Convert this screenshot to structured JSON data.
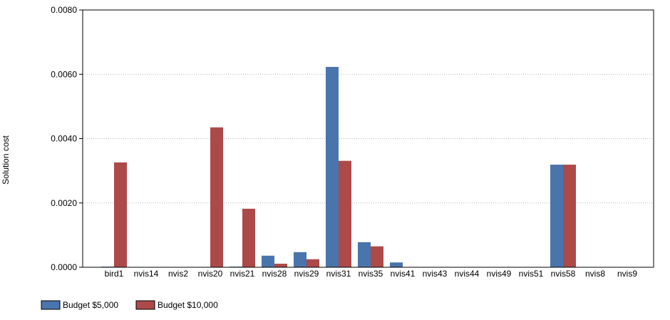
{
  "chart_data": {
    "type": "bar",
    "title": "",
    "xlabel": "",
    "ylabel": "Solution cost",
    "ylim": [
      0,
      0.008
    ],
    "yticks": [
      "0.0000",
      "0.0020",
      "0.0040",
      "0.0060",
      "0.0080"
    ],
    "ytick_values": [
      0,
      0.002,
      0.004,
      0.006,
      0.008
    ],
    "grid": "horizontal dotted",
    "legend_position": "bottom-left",
    "categories": [
      "bird1",
      "nvis14",
      "nvis2",
      "nvis20",
      "nvis21",
      "nvis28",
      "nvis29",
      "nvis31",
      "nvis35",
      "nvis41",
      "nvis43",
      "nvis44",
      "nvis49",
      "nvis51",
      "nvis58",
      "nvis8",
      "nvis9"
    ],
    "series": [
      {
        "name": "Budget $5,000",
        "color": "#4a74ac",
        "values": [
          2e-05,
          0,
          0,
          0,
          2e-05,
          0.00036,
          0.00047,
          0.00623,
          0.00078,
          0.00015,
          0,
          0,
          0,
          0,
          0.00319,
          0,
          0
        ]
      },
      {
        "name": "Budget $10,000",
        "color": "#ac4a4a",
        "values": [
          0.00326,
          0,
          0,
          0.00435,
          0.00182,
          0.00011,
          0.00025,
          0.00331,
          0.00065,
          0,
          0,
          0,
          0,
          0,
          0.00319,
          0,
          0
        ]
      }
    ]
  }
}
